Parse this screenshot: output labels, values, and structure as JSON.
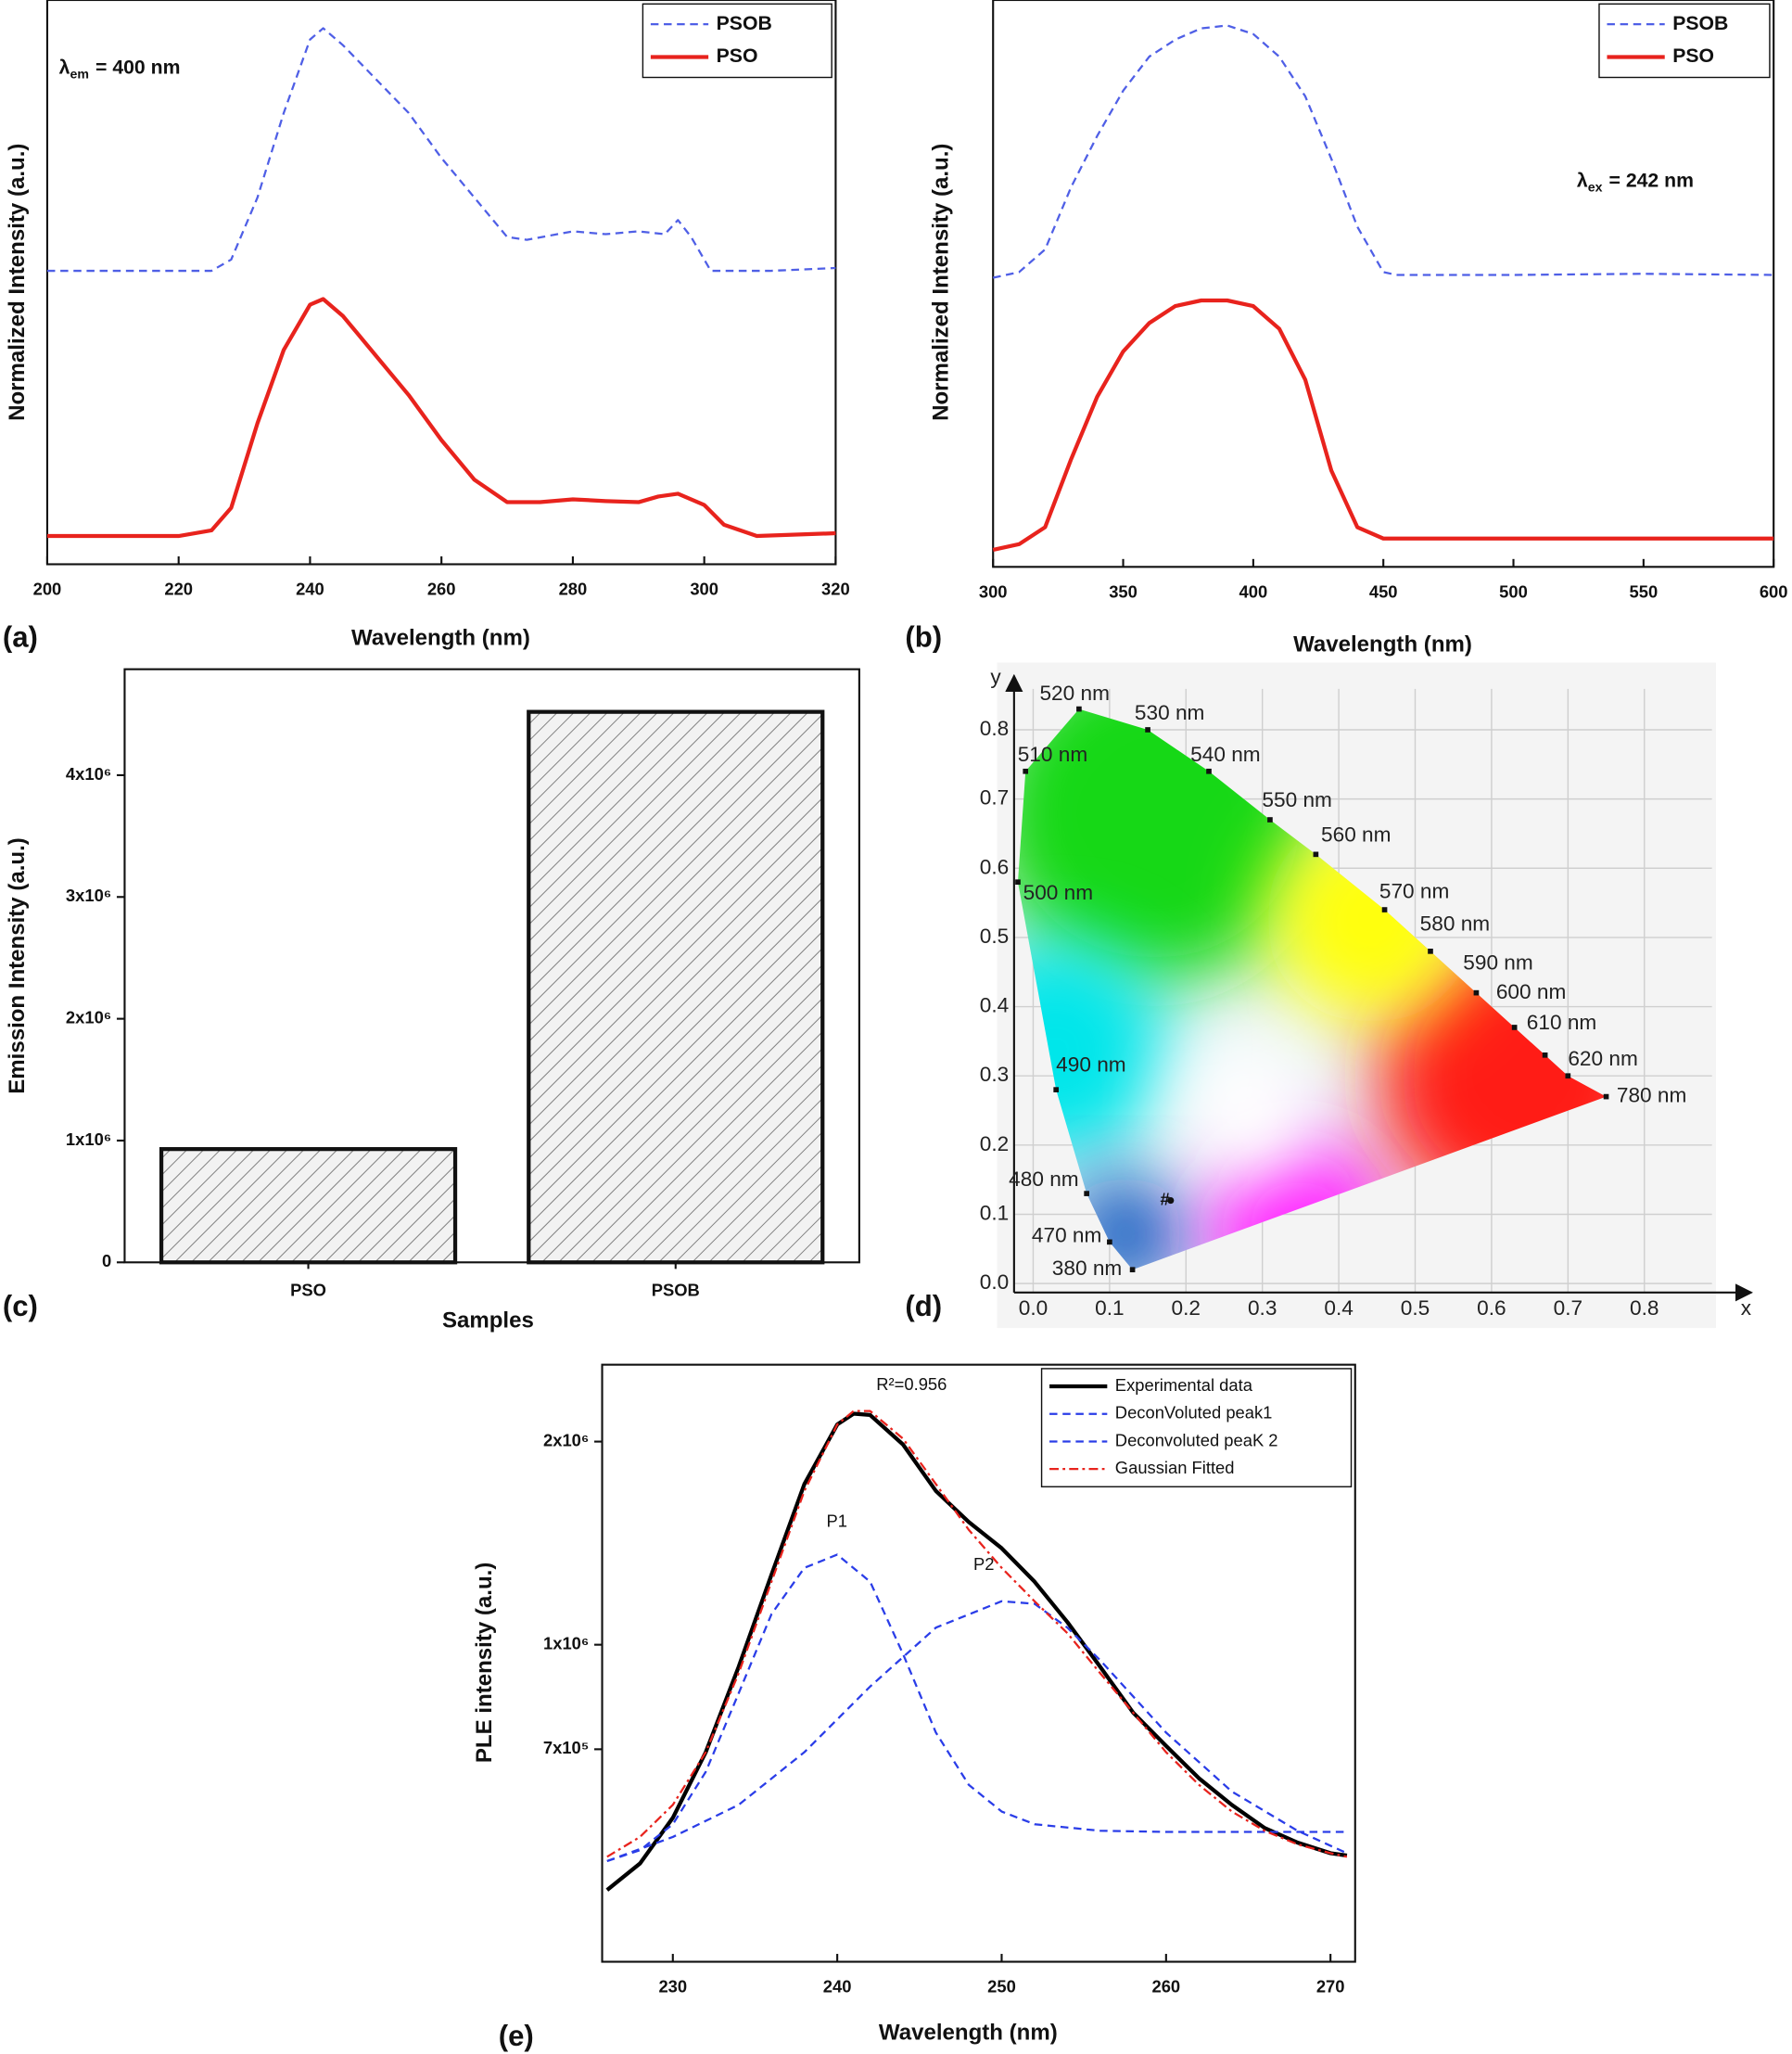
{
  "chart_data": [
    {
      "type": "line",
      "panel_label": "(a)",
      "x_label": "Wavelength (nm)",
      "y_label": "Normalized Intensity (a.u.)",
      "annotation": {
        "symbol": "λ",
        "subscript": "em",
        "text": "= 400 nm"
      },
      "xlim": [
        200,
        320
      ],
      "xticks": [
        200,
        220,
        240,
        260,
        280,
        300,
        320
      ],
      "ylim": [
        0,
        1
      ],
      "legend": "upper right",
      "series": [
        {
          "name": "PSOB",
          "color": "#4f5fe6",
          "line_style": "dashed",
          "x": [
            200,
            225,
            228,
            232,
            236,
            240,
            242,
            245,
            250,
            255,
            260,
            265,
            270,
            273,
            280,
            285,
            290,
            294,
            296,
            298,
            301,
            310,
            320
          ],
          "values": [
            0.52,
            0.52,
            0.54,
            0.65,
            0.8,
            0.93,
            0.95,
            0.92,
            0.86,
            0.8,
            0.72,
            0.65,
            0.58,
            0.575,
            0.59,
            0.585,
            0.59,
            0.585,
            0.61,
            0.58,
            0.52,
            0.52,
            0.525
          ]
        },
        {
          "name": "PSO",
          "color": "#e8231d",
          "line_style": "solid",
          "x": [
            200,
            210,
            220,
            225,
            228,
            232,
            236,
            240,
            242,
            245,
            250,
            255,
            260,
            265,
            270,
            275,
            280,
            285,
            290,
            293,
            296,
            300,
            303,
            308,
            320
          ],
          "values": [
            0.05,
            0.05,
            0.05,
            0.06,
            0.1,
            0.25,
            0.38,
            0.46,
            0.47,
            0.44,
            0.37,
            0.3,
            0.22,
            0.15,
            0.11,
            0.11,
            0.115,
            0.112,
            0.11,
            0.12,
            0.125,
            0.105,
            0.07,
            0.05,
            0.055
          ]
        }
      ]
    },
    {
      "type": "line",
      "panel_label": "(b)",
      "x_label": "Wavelength (nm)",
      "y_label": "Normalized Intensity (a.u.)",
      "annotation": {
        "symbol": "λ",
        "subscript": "ex",
        "text": "= 242 nm"
      },
      "xlim": [
        300,
        600
      ],
      "xticks": [
        300,
        350,
        400,
        450,
        500,
        550,
        600
      ],
      "ylim": [
        0,
        1
      ],
      "legend": "upper right",
      "series": [
        {
          "name": "PSOB",
          "color": "#4f5fe6",
          "line_style": "dashed",
          "x": [
            300,
            310,
            320,
            330,
            340,
            350,
            360,
            370,
            380,
            390,
            400,
            410,
            420,
            430,
            440,
            450,
            455,
            500,
            550,
            600
          ],
          "values": [
            0.51,
            0.52,
            0.56,
            0.67,
            0.76,
            0.84,
            0.9,
            0.93,
            0.95,
            0.955,
            0.94,
            0.9,
            0.83,
            0.72,
            0.6,
            0.52,
            0.515,
            0.515,
            0.517,
            0.515
          ]
        },
        {
          "name": "PSO",
          "color": "#e8231d",
          "line_style": "solid",
          "x": [
            300,
            310,
            320,
            330,
            340,
            350,
            360,
            370,
            380,
            390,
            400,
            410,
            420,
            430,
            440,
            450,
            455,
            500,
            550,
            600
          ],
          "values": [
            0.03,
            0.04,
            0.07,
            0.19,
            0.3,
            0.38,
            0.43,
            0.46,
            0.47,
            0.47,
            0.46,
            0.42,
            0.33,
            0.17,
            0.07,
            0.05,
            0.05,
            0.05,
            0.05,
            0.05
          ]
        }
      ]
    },
    {
      "type": "bar",
      "panel_label": "(c)",
      "x_label": "Samples",
      "y_label": "Emission Intensity (a.u.)",
      "categories": [
        "PSO",
        "PSOB"
      ],
      "values": [
        930000,
        4520000
      ],
      "color": "#e6e6e6",
      "hatch": true,
      "ylim": [
        0,
        4870000
      ],
      "yticks": [
        0,
        {
          "value": 1000000,
          "label": "1x10⁶"
        },
        {
          "value": 2000000,
          "label": "2x10⁶"
        },
        {
          "value": 3000000,
          "label": "3x10⁶"
        },
        {
          "value": 4000000,
          "label": "4x10⁶"
        }
      ]
    },
    {
      "type": "cie",
      "panel_label": "(d)",
      "x_label": "x",
      "y_label": "y",
      "xlim": [
        -0.025,
        0.94
      ],
      "ylim": [
        -0.013,
        0.878
      ],
      "grid": true,
      "xticks": [
        {
          "value": 0,
          "label": "0.0"
        },
        0.1,
        0.2,
        0.3,
        0.4,
        0.5,
        0.6,
        0.7,
        0.8
      ],
      "yticks": [
        {
          "value": 0,
          "label": "0.0"
        },
        0.1,
        0.2,
        0.3,
        0.4,
        0.5,
        0.6,
        0.7,
        0.8
      ],
      "locus": [
        {
          "label": "380 nm",
          "x": 0.13,
          "y": 0.02
        },
        {
          "label": "470 nm",
          "x": 0.1,
          "y": 0.06
        },
        {
          "label": "480 nm",
          "x": 0.07,
          "y": 0.13
        },
        {
          "label": "490 nm",
          "x": 0.03,
          "y": 0.28
        },
        {
          "label": "500 nm",
          "x": -0.02,
          "y": 0.58
        },
        {
          "label": "510 nm",
          "x": -0.01,
          "y": 0.74
        },
        {
          "label": "520 nm",
          "x": 0.06,
          "y": 0.83
        },
        {
          "label": "530 nm",
          "x": 0.15,
          "y": 0.8
        },
        {
          "label": "540 nm",
          "x": 0.23,
          "y": 0.74
        },
        {
          "label": "550 nm",
          "x": 0.31,
          "y": 0.67
        },
        {
          "label": "560 nm",
          "x": 0.37,
          "y": 0.62
        },
        {
          "label": "570 nm",
          "x": 0.46,
          "y": 0.54
        },
        {
          "label": "580 nm",
          "x": 0.52,
          "y": 0.48
        },
        {
          "label": "590 nm",
          "x": 0.58,
          "y": 0.42
        },
        {
          "label": "600 nm",
          "x": 0.63,
          "y": 0.37
        },
        {
          "label": "610 nm",
          "x": 0.67,
          "y": 0.33
        },
        {
          "label": "620 nm",
          "x": 0.7,
          "y": 0.3
        },
        {
          "label": "780 nm",
          "x": 0.75,
          "y": 0.27
        }
      ],
      "point": {
        "label": "#",
        "x": 0.18,
        "y": 0.12
      }
    },
    {
      "type": "line",
      "panel_label": "(e)",
      "x_label": "Wavelength (nm)",
      "y_label": "PLE intensity (a.u.)",
      "r_squared": "R²=0.956",
      "peak_labels": [
        "P1",
        "P2"
      ],
      "xlim": [
        225.7,
        271.5
      ],
      "xticks": [
        230,
        240,
        250,
        260,
        270
      ],
      "yscale": "log",
      "ylim": [
        339000,
        2600000
      ],
      "yticks": [
        {
          "value": 700000,
          "label": "7x10⁵"
        },
        {
          "value": 1000000,
          "label": "1x10⁶"
        },
        {
          "value": 2000000,
          "label": "2x10⁶"
        }
      ],
      "legend": "upper right",
      "series": [
        {
          "name": "Experimental data",
          "color": "#000000",
          "line_style": "solid",
          "x": [
            226,
            228,
            230,
            232,
            234,
            236,
            238,
            240,
            241,
            242,
            244,
            246,
            248,
            250,
            252,
            254,
            256,
            258,
            260,
            262,
            264,
            266,
            268,
            270,
            271
          ],
          "values": [
            433000,
            474000,
            554000,
            693000,
            927000,
            1270000,
            1730000,
            2120000,
            2200000,
            2190000,
            1980000,
            1690000,
            1520000,
            1390000,
            1240000,
            1080000,
            927000,
            793000,
            708000,
            634000,
            579000,
            535000,
            509000,
            491000,
            487000
          ]
        },
        {
          "name": "DeconVoluted peak1",
          "color": "#2a3de8",
          "line_style": "dashed",
          "x": [
            226,
            228,
            230,
            232,
            234,
            236,
            238,
            240,
            242,
            244,
            246,
            248,
            250,
            252,
            256,
            260,
            271
          ],
          "values": [
            478000,
            496000,
            542000,
            648000,
            847000,
            1110000,
            1300000,
            1360000,
            1240000,
            969000,
            741000,
            620000,
            566000,
            542000,
            530000,
            528000,
            528000
          ]
        },
        {
          "name": "Deconvoluted peaK 2",
          "color": "#2a3de8",
          "line_style": "dashed",
          "x": [
            226,
            230,
            234,
            238,
            242,
            246,
            250,
            252,
            254,
            256,
            260,
            264,
            268,
            271
          ],
          "values": [
            478000,
            519000,
            579000,
            693000,
            867000,
            1060000,
            1160000,
            1150000,
            1060000,
            948000,
            741000,
            606000,
            530000,
            491000
          ]
        },
        {
          "name": "Gaussian Fitted",
          "color": "#e8231d",
          "line_style": "dashdot",
          "x": [
            226,
            228,
            230,
            232,
            234,
            236,
            238,
            240,
            241,
            242,
            244,
            246,
            248,
            250,
            252,
            254,
            256,
            258,
            260,
            262,
            264,
            266,
            268,
            270,
            271
          ],
          "values": [
            485000,
            519000,
            579000,
            693000,
            907000,
            1240000,
            1690000,
            2120000,
            2220000,
            2220000,
            2020000,
            1730000,
            1480000,
            1300000,
            1160000,
            1040000,
            907000,
            793000,
            693000,
            620000,
            566000,
            530000,
            506000,
            491000,
            485000
          ]
        }
      ]
    }
  ]
}
